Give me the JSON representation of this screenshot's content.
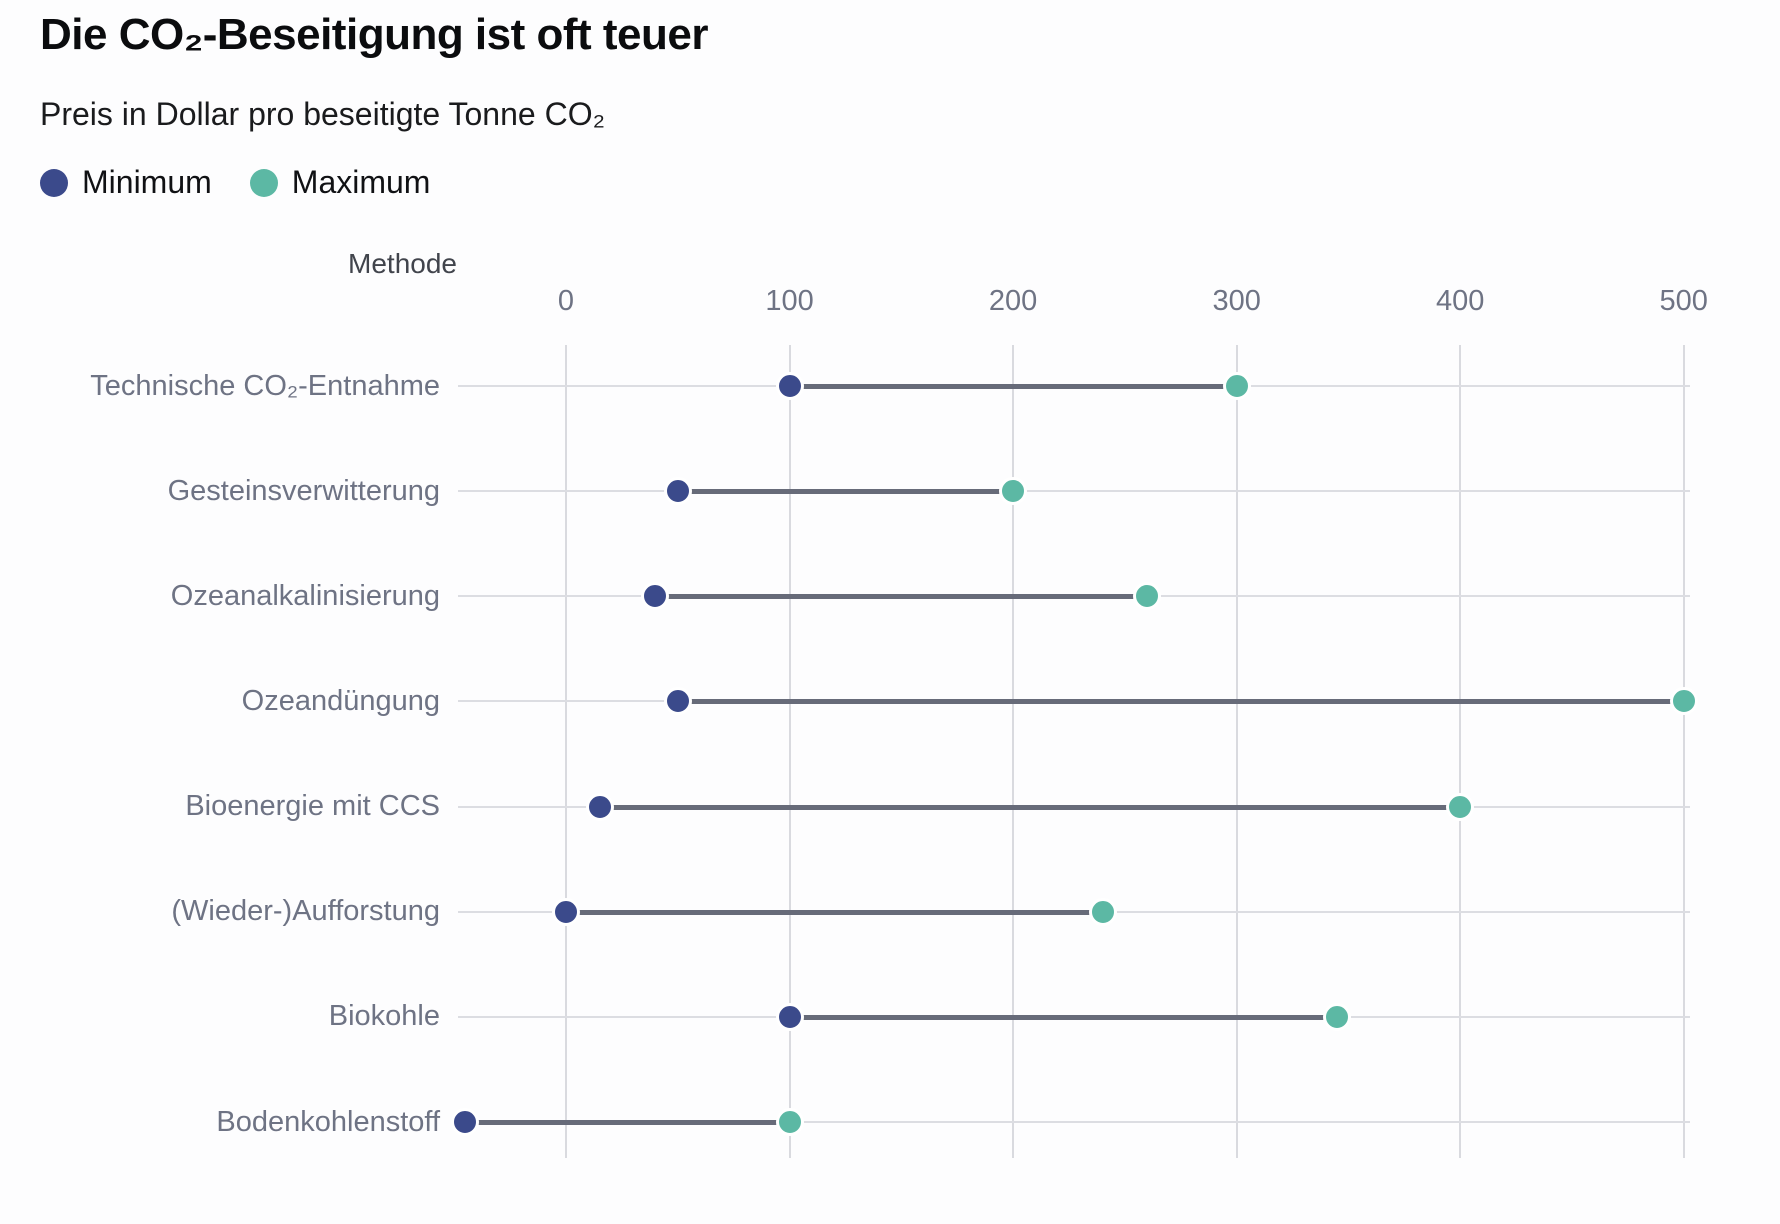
{
  "title": "Die CO₂-Beseitigung ist oft teuer",
  "subtitle": "Preis in Dollar pro beseitigte Tonne CO₂",
  "legend": {
    "items": [
      {
        "label": "Minimum",
        "color": "#3b4a8b"
      },
      {
        "label": "Maximum",
        "color": "#5cb8a4"
      }
    ]
  },
  "axis": {
    "column_header": "Methode",
    "x_ticks": [
      "0",
      "100",
      "200",
      "300",
      "400",
      "500"
    ]
  },
  "colors": {
    "minimum": "#3b4a8b",
    "maximum": "#5cb8a4",
    "connector": "#676b79",
    "gridline": "#d9dadf",
    "label_text": "#6e7384"
  },
  "chart_data": {
    "type": "scatter",
    "variant": "dumbbell-range",
    "title": "Die CO₂-Beseitigung ist oft teuer",
    "subtitle": "Preis in Dollar pro beseitigte Tonne CO₂",
    "ylabel": "Methode",
    "xlabel": "Preis in Dollar pro beseitigte Tonne CO₂",
    "categories": [
      "Technische CO₂-Entnahme",
      "Gesteinsverwitterung",
      "Ozeanalkalinisierung",
      "Ozeandüngung",
      "Bioenergie mit CCS",
      "(Wieder-)Aufforstung",
      "Biokohle",
      "Bodenkohlenstoff"
    ],
    "series": [
      {
        "name": "Minimum",
        "color": "#3b4a8b",
        "values": [
          100,
          50,
          40,
          50,
          15,
          0,
          100,
          -45
        ]
      },
      {
        "name": "Maximum",
        "color": "#5cb8a4",
        "values": [
          300,
          200,
          260,
          500,
          400,
          240,
          345,
          100
        ]
      }
    ],
    "x_ticks": [
      0,
      100,
      200,
      300,
      400,
      500
    ],
    "xlim": [
      -50,
      503
    ],
    "grid": true,
    "legend_position": "top-left"
  }
}
